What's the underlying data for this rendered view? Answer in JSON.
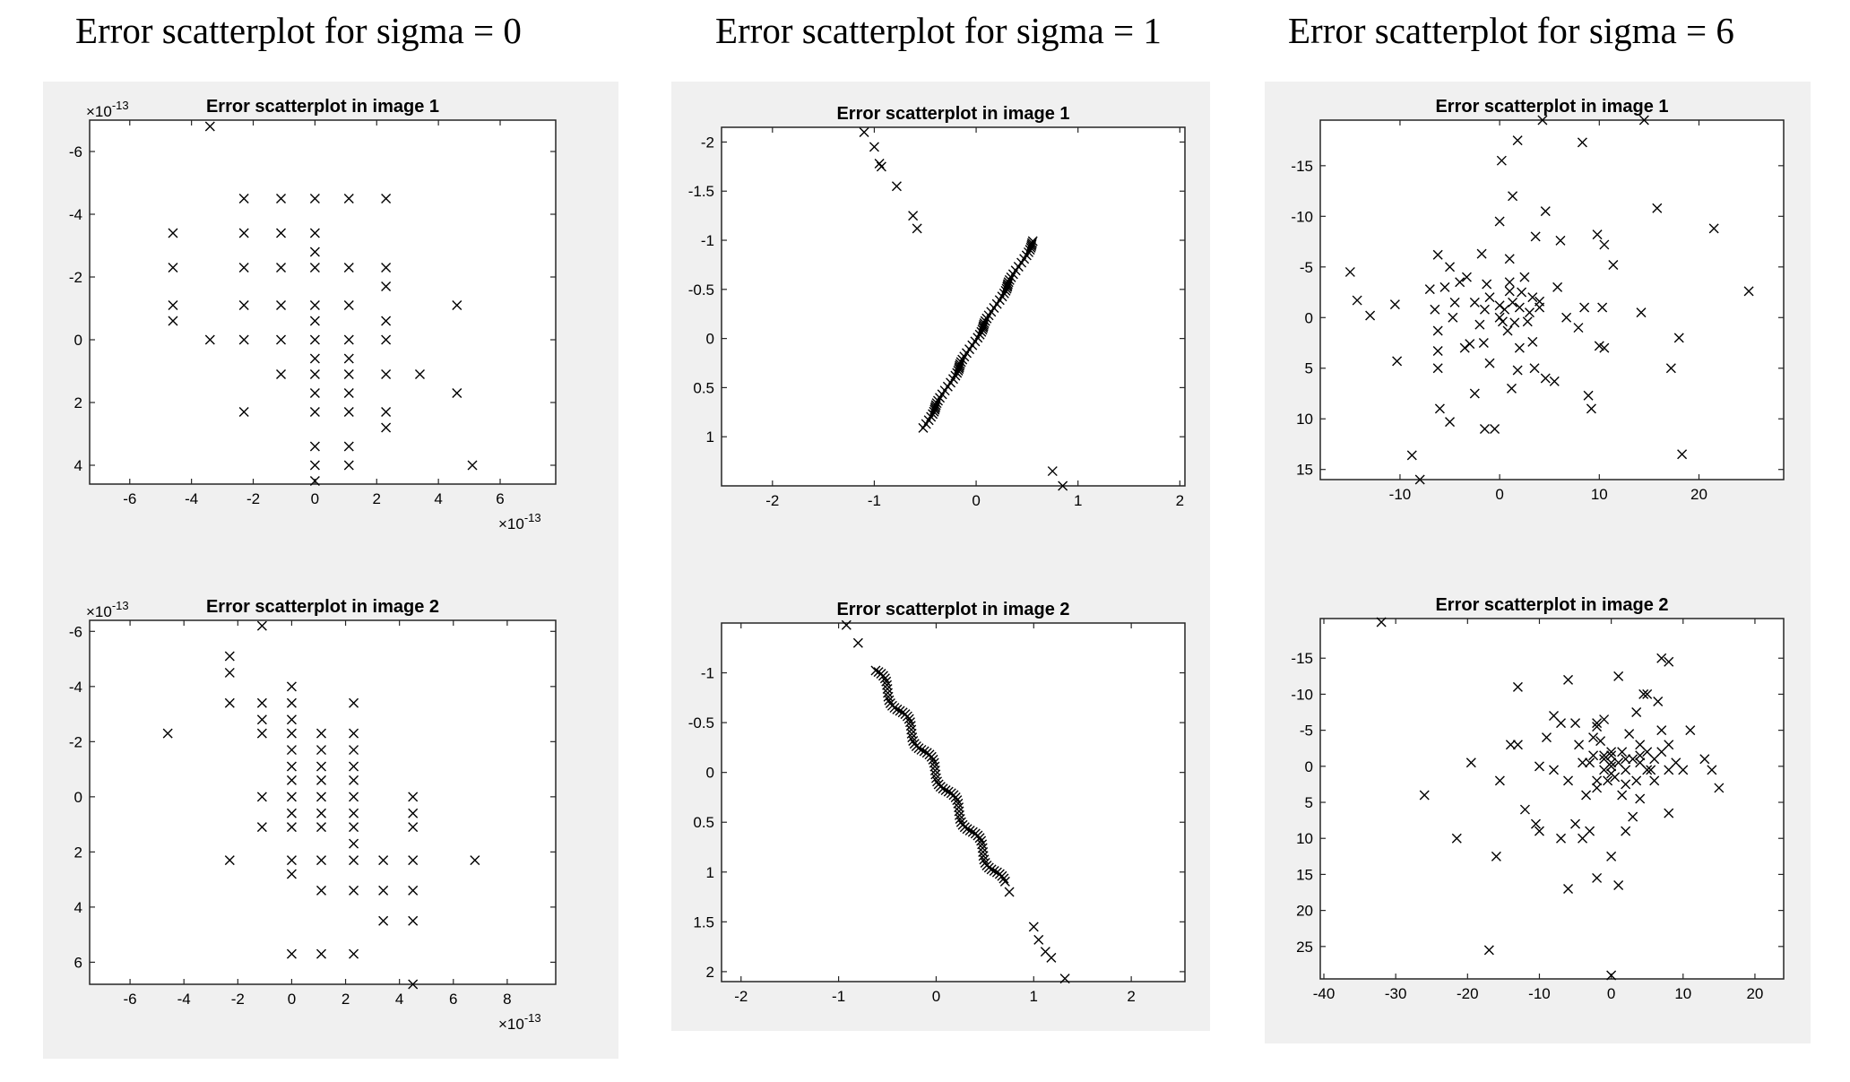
{
  "column_titles": [
    "Error scatterplot for sigma = 0",
    "Error scatterplot for sigma = 1",
    "Error scatterplot for sigma = 6"
  ],
  "chart_data": [
    {
      "type": "scatter",
      "title": "Error scatterplot in image 1",
      "xlabel": "",
      "ylabel": "",
      "x_multiplier": "×10^-13",
      "y_multiplier": "×10^-13",
      "xlim": [
        -7.3,
        7.8
      ],
      "ylim": [
        -7.0,
        4.6
      ],
      "y_reversed": true,
      "grid": false,
      "xticks": [
        -6,
        -4,
        -2,
        0,
        2,
        4,
        6
      ],
      "yticks": [
        -6,
        -4,
        -2,
        0,
        2,
        4
      ],
      "points": [
        [
          -3.4,
          -6.8
        ],
        [
          -2.3,
          -4.5
        ],
        [
          -1.1,
          -4.5
        ],
        [
          0,
          -4.5
        ],
        [
          1.1,
          -4.5
        ],
        [
          2.3,
          -4.5
        ],
        [
          -4.6,
          -3.4
        ],
        [
          -2.3,
          -3.4
        ],
        [
          -1.1,
          -3.4
        ],
        [
          0,
          -3.4
        ],
        [
          0,
          -2.8
        ],
        [
          -4.6,
          -2.3
        ],
        [
          -2.3,
          -2.3
        ],
        [
          -1.1,
          -2.3
        ],
        [
          0,
          -2.3
        ],
        [
          1.1,
          -2.3
        ],
        [
          2.3,
          -2.3
        ],
        [
          2.3,
          -1.7
        ],
        [
          -4.6,
          -1.1
        ],
        [
          -4.6,
          -0.6
        ],
        [
          -2.3,
          -1.1
        ],
        [
          -1.1,
          -1.1
        ],
        [
          0,
          -1.1
        ],
        [
          1.1,
          -1.1
        ],
        [
          2.3,
          -0.6
        ],
        [
          4.6,
          -1.1
        ],
        [
          0,
          -0.6
        ],
        [
          -3.4,
          0
        ],
        [
          -2.3,
          0
        ],
        [
          -1.1,
          0
        ],
        [
          0,
          0
        ],
        [
          1.1,
          0
        ],
        [
          2.3,
          0
        ],
        [
          0,
          0.6
        ],
        [
          1.1,
          0.6
        ],
        [
          0,
          1.1
        ],
        [
          1.1,
          1.1
        ],
        [
          -1.1,
          1.1
        ],
        [
          2.3,
          1.1
        ],
        [
          3.4,
          1.1
        ],
        [
          0,
          1.7
        ],
        [
          1.1,
          1.7
        ],
        [
          4.6,
          1.7
        ],
        [
          -2.3,
          2.3
        ],
        [
          0,
          2.3
        ],
        [
          1.1,
          2.3
        ],
        [
          2.3,
          2.3
        ],
        [
          2.3,
          2.8
        ],
        [
          0,
          3.4
        ],
        [
          1.1,
          3.4
        ],
        [
          0,
          4.0
        ],
        [
          1.1,
          4.0
        ],
        [
          5.1,
          4.0
        ],
        [
          0,
          4.5
        ]
      ]
    },
    {
      "type": "scatter",
      "title": "Error scatterplot in image 2",
      "xlabel": "",
      "ylabel": "",
      "x_multiplier": "×10^-13",
      "y_multiplier": "×10^-13",
      "xlim": [
        -7.5,
        9.8
      ],
      "ylim": [
        -6.4,
        6.8
      ],
      "y_reversed": true,
      "grid": false,
      "xticks": [
        -6,
        -4,
        -2,
        0,
        2,
        4,
        6,
        8
      ],
      "yticks": [
        -6,
        -4,
        -2,
        0,
        2,
        4,
        6
      ],
      "points": [
        [
          -1.1,
          -6.2
        ],
        [
          -2.3,
          -5.1
        ],
        [
          -2.3,
          -4.5
        ],
        [
          0,
          -4.0
        ],
        [
          -2.3,
          -3.4
        ],
        [
          -1.1,
          -3.4
        ],
        [
          0,
          -3.4
        ],
        [
          2.3,
          -3.4
        ],
        [
          -1.1,
          -2.8
        ],
        [
          0,
          -2.8
        ],
        [
          -4.6,
          -2.3
        ],
        [
          -1.1,
          -2.3
        ],
        [
          0,
          -2.3
        ],
        [
          1.1,
          -2.3
        ],
        [
          2.3,
          -2.3
        ],
        [
          0,
          -1.7
        ],
        [
          1.1,
          -1.7
        ],
        [
          2.3,
          -1.7
        ],
        [
          0,
          -1.1
        ],
        [
          1.1,
          -1.1
        ],
        [
          2.3,
          -1.1
        ],
        [
          0,
          -0.6
        ],
        [
          1.1,
          -0.6
        ],
        [
          2.3,
          -0.6
        ],
        [
          1.1,
          0.6
        ],
        [
          0,
          0
        ],
        [
          1.1,
          0
        ],
        [
          2.3,
          0
        ],
        [
          -1.1,
          0
        ],
        [
          4.5,
          0
        ],
        [
          0,
          0.6
        ],
        [
          2.3,
          0.6
        ],
        [
          4.5,
          0.6
        ],
        [
          -1.1,
          1.1
        ],
        [
          0,
          1.1
        ],
        [
          1.1,
          1.1
        ],
        [
          2.3,
          1.1
        ],
        [
          4.5,
          1.1
        ],
        [
          2.3,
          1.7
        ],
        [
          -2.3,
          2.3
        ],
        [
          0,
          2.3
        ],
        [
          1.1,
          2.3
        ],
        [
          2.3,
          2.3
        ],
        [
          3.4,
          2.3
        ],
        [
          4.5,
          2.3
        ],
        [
          6.8,
          2.3
        ],
        [
          0,
          2.8
        ],
        [
          1.1,
          3.4
        ],
        [
          2.3,
          3.4
        ],
        [
          3.4,
          3.4
        ],
        [
          4.5,
          3.4
        ],
        [
          3.4,
          4.5
        ],
        [
          4.5,
          4.5
        ],
        [
          0,
          5.7
        ],
        [
          1.1,
          5.7
        ],
        [
          2.3,
          5.7
        ],
        [
          4.5,
          6.8
        ]
      ]
    },
    {
      "type": "scatter",
      "title": "Error scatterplot in image 1",
      "xlabel": "",
      "ylabel": "",
      "xlim": [
        -2.5,
        2.05
      ],
      "ylim": [
        -2.15,
        1.5
      ],
      "y_reversed": true,
      "grid": false,
      "xticks": [
        -2,
        -1,
        0,
        1,
        2
      ],
      "yticks": [
        -2,
        -1.5,
        -1,
        -0.5,
        0,
        0.5,
        1
      ],
      "line_cluster": {
        "x_start": -0.52,
        "x_end": 0.58,
        "slope": -1.75,
        "count": 70
      },
      "points": [
        [
          -1.1,
          -2.1
        ],
        [
          -1.0,
          -1.95
        ],
        [
          -0.95,
          -1.78
        ],
        [
          -0.93,
          -1.75
        ],
        [
          -0.78,
          -1.55
        ],
        [
          -0.62,
          -1.25
        ],
        [
          -0.58,
          -1.12
        ],
        [
          0.75,
          1.35
        ],
        [
          0.85,
          1.5
        ]
      ]
    },
    {
      "type": "scatter",
      "title": "Error scatterplot in image 2",
      "xlabel": "",
      "ylabel": "",
      "xlim": [
        -2.2,
        2.55
      ],
      "ylim": [
        -1.5,
        2.1
      ],
      "y_reversed": true,
      "grid": false,
      "xticks": [
        -2,
        -1,
        0,
        1,
        2
      ],
      "yticks": [
        -1,
        -0.5,
        0,
        0.5,
        1,
        1.5,
        2
      ],
      "line_cluster": {
        "x_start": -0.62,
        "x_end": 0.68,
        "slope": 1.65,
        "count": 80
      },
      "points": [
        [
          -0.92,
          -1.48
        ],
        [
          -0.8,
          -1.3
        ],
        [
          0.75,
          1.2
        ],
        [
          1.0,
          1.55
        ],
        [
          1.05,
          1.68
        ],
        [
          1.12,
          1.8
        ],
        [
          1.18,
          1.86
        ],
        [
          1.32,
          2.07
        ]
      ]
    },
    {
      "type": "scatter",
      "title": "Error scatterplot in image 1",
      "xlabel": "",
      "ylabel": "",
      "xlim": [
        -18,
        28.5
      ],
      "ylim": [
        -19.5,
        16
      ],
      "y_reversed": true,
      "grid": false,
      "xticks": [
        -10,
        0,
        10,
        20
      ],
      "yticks": [
        -15,
        -10,
        -5,
        0,
        5,
        10,
        15
      ],
      "points": [
        [
          -15,
          -4.5
        ],
        [
          -14.3,
          -1.7
        ],
        [
          -13,
          -0.2
        ],
        [
          -10.5,
          -1.3
        ],
        [
          -10.3,
          4.3
        ],
        [
          -8,
          16
        ],
        [
          -8.8,
          13.6
        ],
        [
          -7,
          -2.8
        ],
        [
          -6.5,
          -0.8
        ],
        [
          -5,
          -5
        ],
        [
          -4,
          -3.5
        ],
        [
          -3.3,
          -4
        ],
        [
          -5.5,
          -3
        ],
        [
          -4.5,
          -1.5
        ],
        [
          -4.7,
          0
        ],
        [
          -6.2,
          -6.2
        ],
        [
          -6.2,
          1.3
        ],
        [
          -6.2,
          3.3
        ],
        [
          -6.2,
          5
        ],
        [
          -6,
          9
        ],
        [
          -3.5,
          3
        ],
        [
          -3,
          2.6
        ],
        [
          -2.5,
          7.5
        ],
        [
          -2,
          0.7
        ],
        [
          -1.8,
          -6.3
        ],
        [
          -1.6,
          2.5
        ],
        [
          -1,
          4.5
        ],
        [
          -1.3,
          -3.3
        ],
        [
          -2.5,
          -1.5
        ],
        [
          -1.5,
          -0.8
        ],
        [
          -0.5,
          11
        ],
        [
          0,
          -9.5
        ],
        [
          0,
          -1.2
        ],
        [
          0,
          0
        ],
        [
          0.3,
          0.4
        ],
        [
          0.5,
          -0.8
        ],
        [
          0.8,
          1.3
        ],
        [
          1,
          -2.6
        ],
        [
          1.3,
          -1.5
        ],
        [
          1.5,
          0.5
        ],
        [
          0.2,
          -15.5
        ],
        [
          1.3,
          -12
        ],
        [
          1.8,
          -17.5
        ],
        [
          1,
          -5.8
        ],
        [
          1.2,
          7
        ],
        [
          1.8,
          5.2
        ],
        [
          2,
          3
        ],
        [
          2.2,
          -2.5
        ],
        [
          2.5,
          -4
        ],
        [
          2.8,
          0.4
        ],
        [
          3,
          -0.5
        ],
        [
          3.3,
          -2
        ],
        [
          3.3,
          2.4
        ],
        [
          3.6,
          -8
        ],
        [
          3.5,
          5
        ],
        [
          4.3,
          -19.5
        ],
        [
          4.6,
          -10.5
        ],
        [
          4.6,
          6
        ],
        [
          4,
          -1
        ],
        [
          5.5,
          6.3
        ],
        [
          5.8,
          -3
        ],
        [
          6.1,
          -7.6
        ],
        [
          6.7,
          0
        ],
        [
          7.9,
          1
        ],
        [
          8.3,
          -17.3
        ],
        [
          8.9,
          7.7
        ],
        [
          8.5,
          -1
        ],
        [
          9.2,
          9
        ],
        [
          9.8,
          -8.2
        ],
        [
          10,
          2.8
        ],
        [
          10.3,
          -1
        ],
        [
          10.5,
          -7.2
        ],
        [
          10.5,
          3
        ],
        [
          11.4,
          -5.2
        ],
        [
          14.2,
          -0.5
        ],
        [
          14.5,
          -19.5
        ],
        [
          15.8,
          -10.8
        ],
        [
          17.2,
          5
        ],
        [
          18,
          2
        ],
        [
          18.3,
          13.5
        ],
        [
          21.5,
          -8.8
        ],
        [
          25,
          -2.6
        ],
        [
          -5,
          10.3
        ],
        [
          -1.5,
          11
        ],
        [
          4,
          -1.6
        ],
        [
          1,
          -3.5
        ],
        [
          -1,
          -2
        ],
        [
          2,
          -1
        ]
      ]
    },
    {
      "type": "scatter",
      "title": "Error scatterplot in image 2",
      "xlabel": "",
      "ylabel": "",
      "xlim": [
        -40.5,
        24
      ],
      "ylim": [
        -20.5,
        29.5
      ],
      "y_reversed": true,
      "grid": false,
      "xticks": [
        -40,
        -30,
        -20,
        -10,
        0,
        10,
        20
      ],
      "yticks": [
        -15,
        -10,
        -5,
        0,
        5,
        10,
        15,
        20,
        25
      ],
      "points": [
        [
          -32,
          -20
        ],
        [
          -26,
          4
        ],
        [
          -21.5,
          10
        ],
        [
          -19.5,
          -0.5
        ],
        [
          -17,
          25.5
        ],
        [
          -16,
          12.5
        ],
        [
          -15.5,
          2
        ],
        [
          -14,
          -3
        ],
        [
          -13,
          -3
        ],
        [
          -13,
          -11
        ],
        [
          -12,
          6
        ],
        [
          -10.5,
          8
        ],
        [
          -10,
          0
        ],
        [
          -10,
          9
        ],
        [
          -9,
          -4
        ],
        [
          -8,
          -7
        ],
        [
          -8,
          0.5
        ],
        [
          -7,
          -6
        ],
        [
          -7,
          10
        ],
        [
          -6,
          17
        ],
        [
          -6,
          2
        ],
        [
          -6,
          -12
        ],
        [
          -5,
          -6
        ],
        [
          -5,
          8
        ],
        [
          -4.5,
          -3
        ],
        [
          -4,
          -0.5
        ],
        [
          -4,
          10
        ],
        [
          -3.5,
          4
        ],
        [
          -3,
          9
        ],
        [
          -3,
          -0.5
        ],
        [
          -2.5,
          -4
        ],
        [
          -2.5,
          -1.5
        ],
        [
          -2,
          -6
        ],
        [
          -2,
          -5.5
        ],
        [
          -2,
          2
        ],
        [
          -2,
          15.5
        ],
        [
          -1.5,
          -3.5
        ],
        [
          -1,
          -1
        ],
        [
          -1,
          0.5
        ],
        [
          -1,
          -6.5
        ],
        [
          -0.5,
          2
        ],
        [
          0,
          -2
        ],
        [
          0,
          0
        ],
        [
          0,
          1
        ],
        [
          0,
          -0.5
        ],
        [
          0,
          -1.5
        ],
        [
          0,
          12.5
        ],
        [
          0,
          29
        ],
        [
          1,
          16.5
        ],
        [
          1,
          -12.5
        ],
        [
          1.5,
          -2
        ],
        [
          1.5,
          4
        ],
        [
          2,
          -1
        ],
        [
          2,
          9
        ],
        [
          2,
          0.5
        ],
        [
          2.5,
          -4.5
        ],
        [
          3,
          -1
        ],
        [
          3,
          7
        ],
        [
          3.5,
          2
        ],
        [
          3.5,
          -7.5
        ],
        [
          4,
          -0.5
        ],
        [
          4,
          -3
        ],
        [
          4,
          -1.5
        ],
        [
          4,
          4.5
        ],
        [
          4.5,
          -10
        ],
        [
          5,
          0.5
        ],
        [
          5,
          -2
        ],
        [
          5,
          -10
        ],
        [
          5.5,
          0.5
        ],
        [
          6,
          -1
        ],
        [
          6,
          2
        ],
        [
          6.5,
          -9
        ],
        [
          7,
          -5
        ],
        [
          7,
          -2
        ],
        [
          7,
          -15
        ],
        [
          8,
          -3
        ],
        [
          8,
          -14.5
        ],
        [
          8,
          0.5
        ],
        [
          8,
          6.5
        ],
        [
          9,
          -0.5
        ],
        [
          10,
          0.5
        ],
        [
          11,
          -5
        ],
        [
          13,
          -1
        ],
        [
          14,
          0.5
        ],
        [
          15,
          3
        ],
        [
          -2,
          3
        ],
        [
          1,
          -0.5
        ],
        [
          -1,
          -1.5
        ],
        [
          0.5,
          1.5
        ],
        [
          2,
          2.5
        ]
      ]
    }
  ]
}
